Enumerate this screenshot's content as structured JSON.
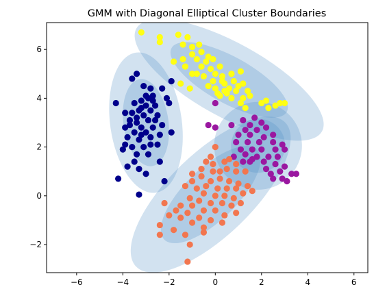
{
  "chart_data": {
    "type": "scatter",
    "title": "GMM with Diagonal Elliptical Cluster Boundaries",
    "xlabel": "",
    "ylabel": "",
    "xlim": [
      -7.3,
      6.6
    ],
    "ylim": [
      -3.15,
      7.1
    ],
    "grid": false,
    "legend": "none",
    "x_ticks": [
      -6,
      -4,
      -2,
      0,
      2,
      4,
      6
    ],
    "y_ticks": [
      -2,
      0,
      2,
      4,
      6
    ],
    "x_tick_labels": [
      "−6",
      "−4",
      "−2",
      "0",
      "2",
      "4",
      "6"
    ],
    "y_tick_labels": [
      "−2",
      "0",
      "2",
      "4",
      "6"
    ],
    "ellipse_color": "#4a8ac4",
    "series": [
      {
        "color": "#00008b",
        "center": [
          -3.0,
          3.0
        ],
        "points": [
          [
            -3.4,
            5.0
          ],
          [
            -3.6,
            4.8
          ],
          [
            -3.1,
            4.5
          ],
          [
            -2.8,
            4.4
          ],
          [
            -1.9,
            4.7
          ],
          [
            -2.3,
            4.4
          ],
          [
            -2.1,
            4.0
          ],
          [
            -2.0,
            3.8
          ],
          [
            -4.3,
            3.8
          ],
          [
            -3.5,
            3.8
          ],
          [
            -3.2,
            3.9
          ],
          [
            -2.9,
            4.0
          ],
          [
            -2.7,
            3.9
          ],
          [
            -3.0,
            3.7
          ],
          [
            -2.6,
            3.7
          ],
          [
            -3.3,
            3.5
          ],
          [
            -2.8,
            3.5
          ],
          [
            -3.6,
            3.4
          ],
          [
            -3.9,
            3.4
          ],
          [
            -3.1,
            3.3
          ],
          [
            -2.5,
            3.3
          ],
          [
            -2.9,
            3.1
          ],
          [
            -3.4,
            3.0
          ],
          [
            -3.7,
            2.9
          ],
          [
            -3.2,
            2.8
          ],
          [
            -2.7,
            2.8
          ],
          [
            -3.9,
            2.8
          ],
          [
            -3.0,
            2.6
          ],
          [
            -3.5,
            2.6
          ],
          [
            -2.4,
            2.5
          ],
          [
            -1.9,
            2.6
          ],
          [
            -3.8,
            2.4
          ],
          [
            -3.3,
            2.3
          ],
          [
            -2.8,
            2.4
          ],
          [
            -3.9,
            2.1
          ],
          [
            -3.6,
            2.0
          ],
          [
            -3.1,
            2.0
          ],
          [
            -2.5,
            2.1
          ],
          [
            -4.0,
            1.9
          ],
          [
            -3.4,
            1.7
          ],
          [
            -2.9,
            1.7
          ],
          [
            -3.5,
            1.4
          ],
          [
            -2.4,
            1.4
          ],
          [
            -3.8,
            1.2
          ],
          [
            -3.3,
            1.1
          ],
          [
            -3.0,
            0.9
          ],
          [
            -4.2,
            0.7
          ],
          [
            -2.2,
            0.6
          ],
          [
            -3.3,
            0.05
          ],
          [
            -3.2,
            3.6
          ],
          [
            -2.6,
            3.1
          ],
          [
            -3.7,
            3.1
          ],
          [
            -2.8,
            2.1
          ],
          [
            -3.2,
            2.5
          ],
          [
            -2.7,
            4.1
          ],
          [
            -3.0,
            4.1
          ],
          [
            -3.4,
            3.2
          ],
          [
            -2.3,
            2.9
          ]
        ]
      },
      {
        "color": "#ffff14",
        "center": [
          0.5,
          4.9
        ],
        "points": [
          [
            -3.2,
            6.7
          ],
          [
            -2.4,
            6.5
          ],
          [
            -1.6,
            6.6
          ],
          [
            -1.2,
            6.5
          ],
          [
            -2.4,
            6.3
          ],
          [
            -1.4,
            6.2
          ],
          [
            -1.0,
            6.1
          ],
          [
            -0.7,
            6.2
          ],
          [
            -1.0,
            5.8
          ],
          [
            -0.6,
            5.9
          ],
          [
            -1.8,
            5.5
          ],
          [
            -1.4,
            5.6
          ],
          [
            -0.8,
            5.6
          ],
          [
            -0.4,
            5.5
          ],
          [
            -0.1,
            5.6
          ],
          [
            -1.3,
            5.3
          ],
          [
            -0.6,
            5.3
          ],
          [
            -0.2,
            5.2
          ],
          [
            0.2,
            5.3
          ],
          [
            -1.0,
            5.0
          ],
          [
            -0.5,
            4.9
          ],
          [
            0.0,
            5.0
          ],
          [
            0.3,
            4.9
          ],
          [
            0.7,
            5.0
          ],
          [
            1.1,
            5.1
          ],
          [
            -0.1,
            4.7
          ],
          [
            0.4,
            4.6
          ],
          [
            0.8,
            4.7
          ],
          [
            1.2,
            4.6
          ],
          [
            -1.5,
            4.6
          ],
          [
            -1.1,
            4.4
          ],
          [
            0.0,
            4.4
          ],
          [
            0.4,
            4.3
          ],
          [
            0.9,
            4.3
          ],
          [
            1.4,
            4.3
          ],
          [
            0.2,
            4.1
          ],
          [
            0.7,
            4.0
          ],
          [
            1.2,
            4.0
          ],
          [
            1.5,
            4.1
          ],
          [
            -0.3,
            4.5
          ],
          [
            0.6,
            4.4
          ],
          [
            1.0,
            4.5
          ],
          [
            1.1,
            3.8
          ],
          [
            2.0,
            3.8
          ],
          [
            2.3,
            3.6
          ],
          [
            2.6,
            3.7
          ],
          [
            2.8,
            3.8
          ],
          [
            3.0,
            3.8
          ],
          [
            1.3,
            3.6
          ],
          [
            2.2,
            3.9
          ],
          [
            0.5,
            4.2
          ],
          [
            0.3,
            4.7
          ],
          [
            -0.8,
            5.0
          ],
          [
            -0.3,
            5.7
          ],
          [
            0.1,
            4.2
          ]
        ]
      },
      {
        "color": "#9a17a0",
        "center": [
          1.7,
          2.0
        ],
        "points": [
          [
            -0.0,
            3.8
          ],
          [
            -0.3,
            2.9
          ],
          [
            0.0,
            2.8
          ],
          [
            0.7,
            2.9
          ],
          [
            1.2,
            3.1
          ],
          [
            1.7,
            3.2
          ],
          [
            1.5,
            2.9
          ],
          [
            2.0,
            3.0
          ],
          [
            1.3,
            2.7
          ],
          [
            1.8,
            2.7
          ],
          [
            2.2,
            2.8
          ],
          [
            1.0,
            2.5
          ],
          [
            1.5,
            2.5
          ],
          [
            2.1,
            2.4
          ],
          [
            2.5,
            2.5
          ],
          [
            0.9,
            2.2
          ],
          [
            1.4,
            2.2
          ],
          [
            1.9,
            2.2
          ],
          [
            2.5,
            2.2
          ],
          [
            2.9,
            2.1
          ],
          [
            1.1,
            1.9
          ],
          [
            1.6,
            1.9
          ],
          [
            2.0,
            1.9
          ],
          [
            2.6,
            1.9
          ],
          [
            3.0,
            1.9
          ],
          [
            1.3,
            1.7
          ],
          [
            1.8,
            1.6
          ],
          [
            2.3,
            1.6
          ],
          [
            2.7,
            1.6
          ],
          [
            1.5,
            1.4
          ],
          [
            2.1,
            1.4
          ],
          [
            2.6,
            1.3
          ],
          [
            3.0,
            1.2
          ],
          [
            2.2,
            1.1
          ],
          [
            2.8,
            1.0
          ],
          [
            3.3,
            0.9
          ],
          [
            3.5,
            0.9
          ],
          [
            2.5,
            0.7
          ],
          [
            2.9,
            0.7
          ],
          [
            3.1,
            0.6
          ],
          [
            1.2,
            1.4
          ],
          [
            0.8,
            1.6
          ],
          [
            2.4,
            0.9
          ],
          [
            1.6,
            1.5
          ]
        ]
      },
      {
        "color": "#f2764f",
        "center": [
          -0.2,
          0.0
        ],
        "points": [
          [
            0.0,
            2.0
          ],
          [
            -0.2,
            1.6
          ],
          [
            -0.4,
            1.4
          ],
          [
            -0.1,
            1.3
          ],
          [
            0.4,
            1.4
          ],
          [
            0.6,
            1.5
          ],
          [
            0.9,
            1.3
          ],
          [
            -0.6,
            1.1
          ],
          [
            -0.1,
            1.0
          ],
          [
            0.2,
            1.0
          ],
          [
            0.5,
            1.1
          ],
          [
            0.9,
            1.0
          ],
          [
            1.3,
            1.0
          ],
          [
            -1.0,
            0.9
          ],
          [
            -0.6,
            0.8
          ],
          [
            -0.2,
            0.6
          ],
          [
            0.2,
            0.7
          ],
          [
            0.6,
            0.6
          ],
          [
            1.0,
            0.5
          ],
          [
            -1.0,
            0.6
          ],
          [
            -0.4,
            0.4
          ],
          [
            0.1,
            0.3
          ],
          [
            0.5,
            0.3
          ],
          [
            0.9,
            0.3
          ],
          [
            1.4,
            0.4
          ],
          [
            -1.3,
            0.4
          ],
          [
            -0.8,
            0.3
          ],
          [
            -0.5,
            0.1
          ],
          [
            0.0,
            0.0
          ],
          [
            0.4,
            0.0
          ],
          [
            0.8,
            -0.1
          ],
          [
            1.2,
            0.1
          ],
          [
            1.6,
            0.2
          ],
          [
            -1.1,
            -0.1
          ],
          [
            -0.7,
            -0.2
          ],
          [
            -0.2,
            -0.3
          ],
          [
            0.3,
            -0.3
          ],
          [
            0.7,
            -0.4
          ],
          [
            1.1,
            -0.3
          ],
          [
            -1.5,
            -0.4
          ],
          [
            -1.0,
            -0.4
          ],
          [
            -0.5,
            -0.6
          ],
          [
            0.0,
            -0.6
          ],
          [
            0.4,
            -0.8
          ],
          [
            0.9,
            -0.7
          ],
          [
            -2.2,
            -0.3
          ],
          [
            -1.7,
            -0.6
          ],
          [
            -1.2,
            -0.7
          ],
          [
            -0.7,
            -0.9
          ],
          [
            -0.2,
            -1.0
          ],
          [
            0.3,
            -1.1
          ],
          [
            -2.0,
            -0.8
          ],
          [
            -1.5,
            -0.9
          ],
          [
            -1.0,
            -1.1
          ],
          [
            -0.5,
            -1.3
          ],
          [
            -2.4,
            -1.2
          ],
          [
            -1.8,
            -1.4
          ],
          [
            -1.3,
            -1.6
          ],
          [
            -0.5,
            -1.5
          ],
          [
            -2.4,
            -1.6
          ],
          [
            -1.1,
            -2.0
          ],
          [
            -1.2,
            -2.7
          ]
        ]
      }
    ],
    "ellipses": [
      {
        "cx": -3.0,
        "cy": 3.0,
        "w2": 3.1,
        "h2": 5.8,
        "w1": 1.95,
        "h1": 3.6,
        "angle": 8
      },
      {
        "cx": 0.6,
        "cy": 4.75,
        "w2": 3.2,
        "h2": 8.7,
        "w1": 2.0,
        "h1": 5.4,
        "angle": 61
      },
      {
        "cx": 1.85,
        "cy": 2.05,
        "w2": 3.8,
        "h2": 3.6,
        "w1": 2.35,
        "h1": 2.2,
        "angle": 38
      },
      {
        "cx": -0.2,
        "cy": 0.05,
        "w2": 3.6,
        "h2": 8.5,
        "w1": 2.25,
        "h1": 5.3,
        "angle": -46
      }
    ]
  }
}
